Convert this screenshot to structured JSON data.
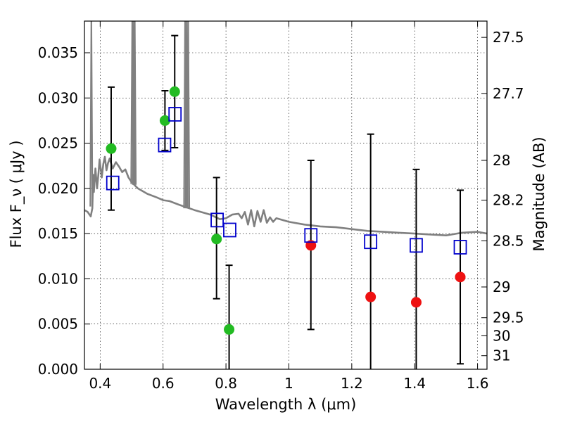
{
  "chart_data": {
    "type": "scatter",
    "xlabel": "Wavelength  λ (μm)",
    "ylabel": "Flux  F_ν  ( μJy )",
    "ylabel_right": "Magnitude (AB)",
    "xlim": [
      0.35,
      1.63
    ],
    "ylim": [
      0,
      0.0385
    ],
    "grid": true,
    "x_ticks": [
      0.4,
      0.6,
      0.8,
      1.0,
      1.2,
      1.4,
      1.6
    ],
    "x_tick_labels": [
      "0.4",
      "0.6",
      "0.8",
      "1",
      "1.2",
      "1.4",
      "1.6"
    ],
    "y_ticks": [
      0,
      0.005,
      0.01,
      0.015,
      0.02,
      0.025,
      0.03,
      0.035
    ],
    "y_tick_labels": [
      "0.000",
      "0.005",
      "0.010",
      "0.015",
      "0.020",
      "0.025",
      "0.030",
      "0.035"
    ],
    "right_ticks": [
      {
        "label": "27.5",
        "flux": 0.0367
      },
      {
        "label": "27.7",
        "flux": 0.0305
      },
      {
        "label": "28",
        "flux": 0.0231
      },
      {
        "label": "28.2",
        "flux": 0.0187
      },
      {
        "label": "28.5",
        "flux": 0.0142
      },
      {
        "label": "29",
        "flux": 0.0091
      },
      {
        "label": "29.5",
        "flux": 0.0057
      },
      {
        "label": "30",
        "flux": 0.0037
      },
      {
        "label": "31",
        "flux": 0.0015
      }
    ],
    "series": [
      {
        "marker": "circle",
        "color": "#22bb22",
        "points": [
          {
            "x": 0.435,
            "y": 0.0244,
            "err_low": 0.0176,
            "err_high": 0.0312
          },
          {
            "x": 0.606,
            "y": 0.0275,
            "err_low": 0.0242,
            "err_high": 0.0308
          },
          {
            "x": 0.637,
            "y": 0.0307,
            "err_low": 0.0245,
            "err_high": 0.0369
          },
          {
            "x": 0.77,
            "y": 0.0144,
            "err_low": 0.0078,
            "err_high": 0.0212
          },
          {
            "x": 0.81,
            "y": 0.0044,
            "err_low": 0.0,
            "err_high": 0.0115
          }
        ]
      },
      {
        "marker": "circle",
        "color": "#ee1111",
        "points": [
          {
            "x": 1.07,
            "y": 0.0137,
            "err_low": 0.0044,
            "err_high": 0.0231
          },
          {
            "x": 1.26,
            "y": 0.008,
            "err_low": 0.0,
            "err_high": 0.026
          },
          {
            "x": 1.405,
            "y": 0.0074,
            "err_low": 0.0,
            "err_high": 0.0221
          },
          {
            "x": 1.545,
            "y": 0.0102,
            "err_low": 0.0006,
            "err_high": 0.0198
          }
        ]
      },
      {
        "marker": "open-square",
        "color": "#0000cc",
        "points": [
          {
            "x": 0.44,
            "y": 0.0206
          },
          {
            "x": 0.605,
            "y": 0.0248
          },
          {
            "x": 0.638,
            "y": 0.0282
          },
          {
            "x": 0.772,
            "y": 0.0165
          },
          {
            "x": 0.812,
            "y": 0.0154
          },
          {
            "x": 1.07,
            "y": 0.0148
          },
          {
            "x": 1.26,
            "y": 0.0141
          },
          {
            "x": 1.405,
            "y": 0.0137
          },
          {
            "x": 1.545,
            "y": 0.0135
          }
        ]
      }
    ],
    "model_spectrum": {
      "color": "#808080",
      "points": [
        [
          0.35,
          0.0176
        ],
        [
          0.36,
          0.0174
        ],
        [
          0.37,
          0.0169
        ],
        [
          0.375,
          0.0178
        ],
        [
          0.378,
          0.0215
        ],
        [
          0.38,
          0.0196
        ],
        [
          0.385,
          0.0222
        ],
        [
          0.39,
          0.02
        ],
        [
          0.395,
          0.0218
        ],
        [
          0.398,
          0.0232
        ],
        [
          0.405,
          0.0212
        ],
        [
          0.41,
          0.0227
        ],
        [
          0.415,
          0.0235
        ],
        [
          0.42,
          0.022
        ],
        [
          0.425,
          0.0228
        ],
        [
          0.43,
          0.0233
        ],
        [
          0.44,
          0.0222
        ],
        [
          0.45,
          0.0229
        ],
        [
          0.46,
          0.0224
        ],
        [
          0.47,
          0.0218
        ],
        [
          0.48,
          0.0221
        ],
        [
          0.49,
          0.0212
        ],
        [
          0.5,
          0.0207
        ],
        [
          0.52,
          0.02
        ],
        [
          0.55,
          0.0194
        ],
        [
          0.58,
          0.019
        ],
        [
          0.6,
          0.0187
        ],
        [
          0.62,
          0.0186
        ],
        [
          0.65,
          0.0182
        ],
        [
          0.7,
          0.0176
        ],
        [
          0.75,
          0.0171
        ],
        [
          0.78,
          0.0166
        ],
        [
          0.8,
          0.0167
        ],
        [
          0.82,
          0.0171
        ],
        [
          0.84,
          0.0172
        ],
        [
          0.85,
          0.0167
        ],
        [
          0.86,
          0.0174
        ],
        [
          0.87,
          0.016
        ],
        [
          0.88,
          0.0176
        ],
        [
          0.89,
          0.0158
        ],
        [
          0.9,
          0.0175
        ],
        [
          0.91,
          0.0163
        ],
        [
          0.92,
          0.0176
        ],
        [
          0.93,
          0.0162
        ],
        [
          0.94,
          0.0168
        ],
        [
          0.95,
          0.0163
        ],
        [
          0.96,
          0.0167
        ],
        [
          1.0,
          0.0163
        ],
        [
          1.05,
          0.016
        ],
        [
          1.1,
          0.0158
        ],
        [
          1.15,
          0.0157
        ],
        [
          1.2,
          0.0155
        ],
        [
          1.25,
          0.0153
        ],
        [
          1.3,
          0.0152
        ],
        [
          1.35,
          0.0151
        ],
        [
          1.4,
          0.015
        ],
        [
          1.45,
          0.0149
        ],
        [
          1.5,
          0.0148
        ],
        [
          1.55,
          0.0151
        ],
        [
          1.6,
          0.0152
        ],
        [
          1.63,
          0.015
        ]
      ],
      "emission_lines": [
        {
          "x": 0.372,
          "peak": 0.0385,
          "base": 0.018
        },
        {
          "x": 0.502,
          "peak": 0.0385,
          "base": 0.0205
        },
        {
          "x": 0.507,
          "peak": 0.0385,
          "base": 0.0204
        },
        {
          "x": 0.51,
          "peak": 0.0385,
          "base": 0.0204
        },
        {
          "x": 0.67,
          "peak": 0.0385,
          "base": 0.0178
        },
        {
          "x": 0.675,
          "peak": 0.0385,
          "base": 0.0178
        },
        {
          "x": 0.68,
          "peak": 0.0385,
          "base": 0.0178
        }
      ]
    }
  }
}
